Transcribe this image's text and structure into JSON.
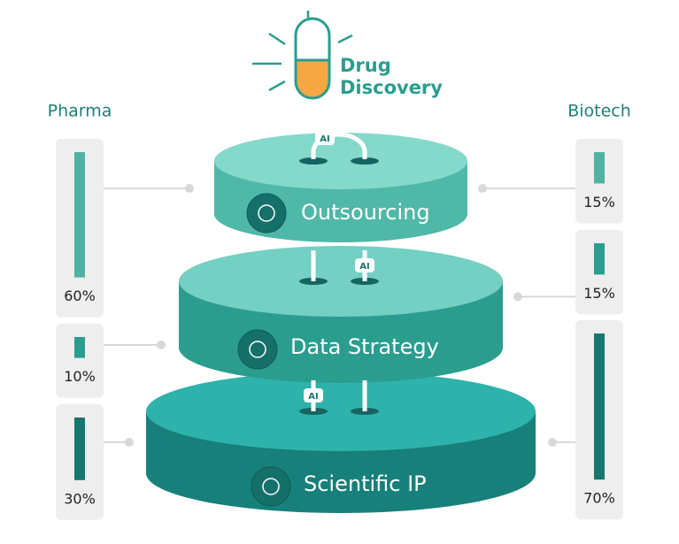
{
  "header": {
    "title_lines": [
      "Drug",
      "Discovery"
    ]
  },
  "columns": {
    "left": "Pharma",
    "right": "Biotech"
  },
  "tiers": [
    {
      "label": "Outsourcing",
      "pharma": {
        "value": 60,
        "label": "60%"
      },
      "biotech": {
        "value": 15,
        "label": "15%"
      }
    },
    {
      "label": "Data Strategy",
      "pharma": {
        "value": 10,
        "label": "10%"
      },
      "biotech": {
        "value": 15,
        "label": "15%"
      }
    },
    {
      "label": "Scientific IP",
      "pharma": {
        "value": 30,
        "label": "30%"
      },
      "biotech": {
        "value": 70,
        "label": "70%"
      }
    }
  ],
  "ai_badges": [
    "AI",
    "AI",
    "AI"
  ]
}
